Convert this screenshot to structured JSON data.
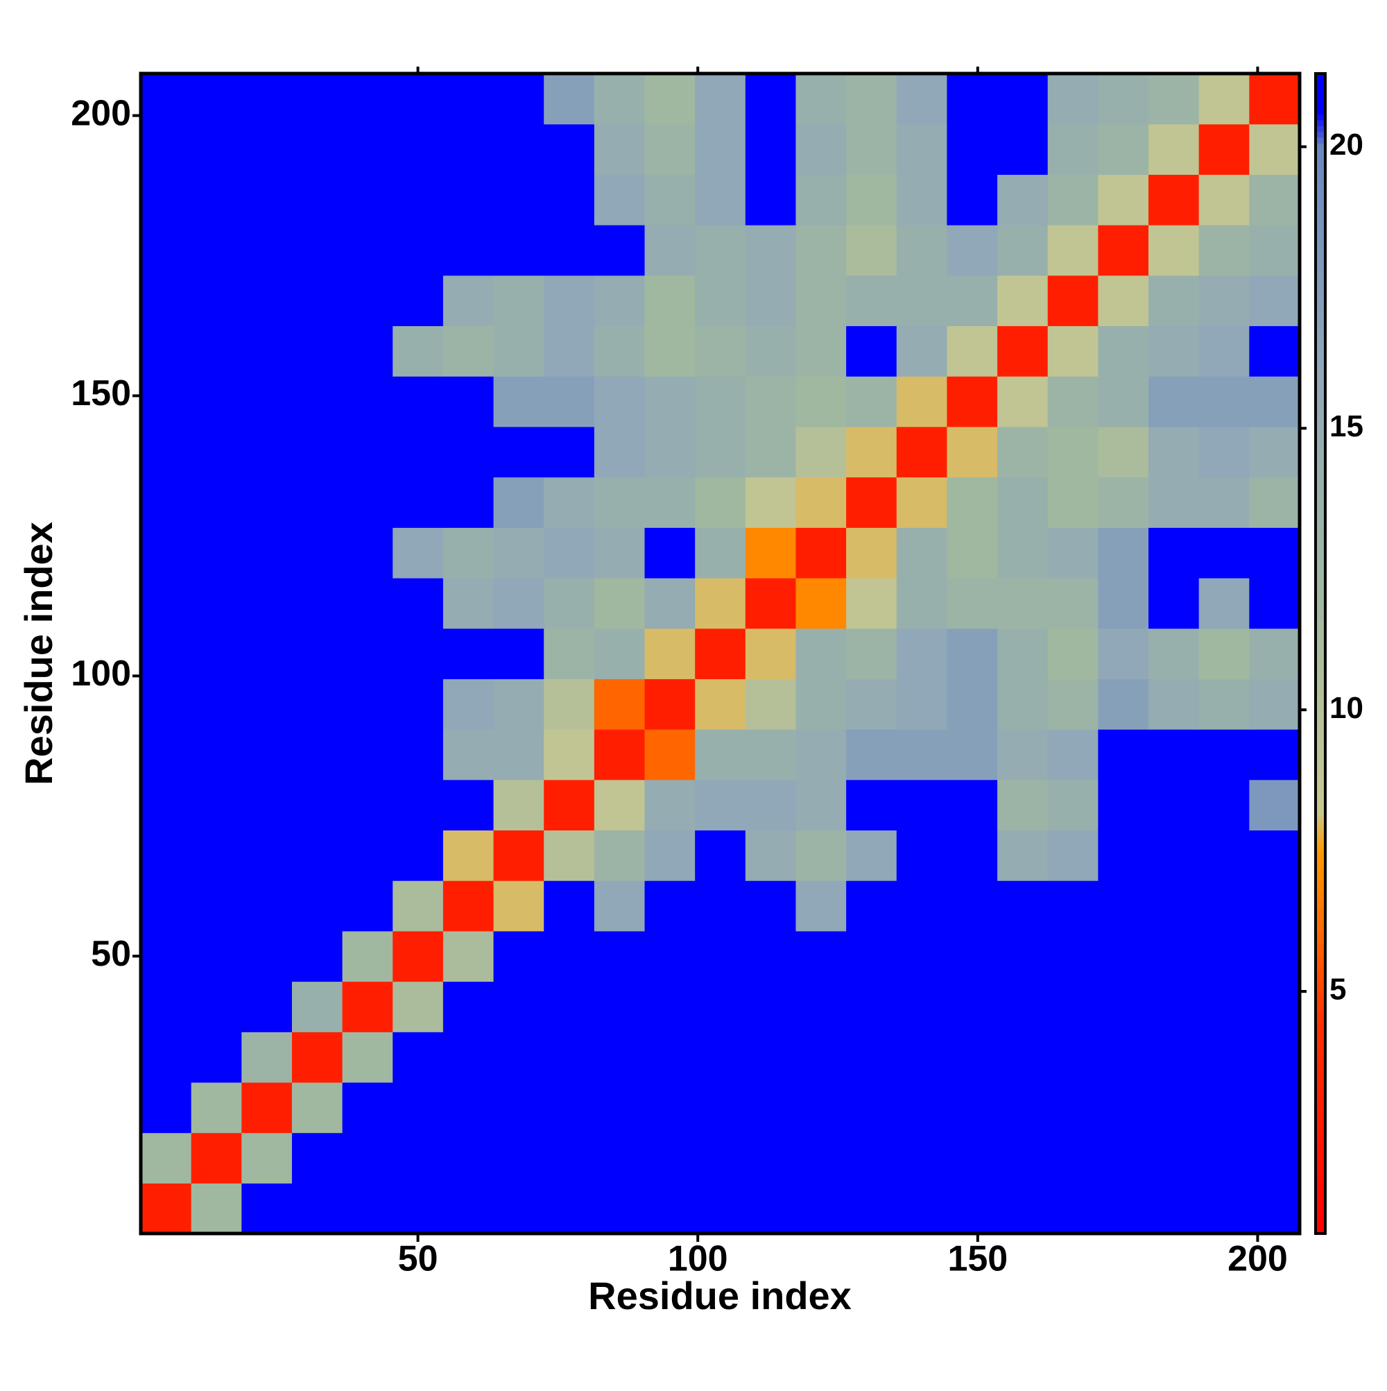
{
  "chart_data": {
    "type": "heatmap",
    "x_label": "Residue index",
    "y_label": "Residue index",
    "x": [
      5,
      14,
      23,
      32,
      41,
      50,
      59,
      68,
      77,
      86,
      95,
      104,
      113,
      122,
      131,
      140,
      149,
      158,
      167,
      176,
      185,
      194,
      203
    ],
    "y": [
      5,
      14,
      23,
      32,
      41,
      50,
      59,
      68,
      77,
      86,
      95,
      104,
      113,
      122,
      131,
      140,
      149,
      158,
      167,
      176,
      185,
      194,
      203
    ],
    "z": [
      [
        3,
        12,
        21,
        21,
        21,
        21,
        21,
        21,
        21,
        21,
        21,
        21,
        21,
        21,
        21,
        21,
        21,
        21,
        21,
        21,
        21,
        21,
        21
      ],
      [
        12,
        3,
        12,
        21,
        21,
        21,
        21,
        21,
        21,
        21,
        21,
        21,
        21,
        21,
        21,
        21,
        21,
        21,
        21,
        21,
        21,
        21,
        21
      ],
      [
        21,
        12,
        3,
        12,
        21,
        21,
        21,
        21,
        21,
        21,
        21,
        21,
        21,
        21,
        21,
        21,
        21,
        21,
        21,
        21,
        21,
        21,
        21
      ],
      [
        21,
        21,
        13,
        3,
        12,
        21,
        21,
        21,
        21,
        21,
        21,
        21,
        21,
        21,
        21,
        21,
        21,
        21,
        21,
        21,
        21,
        21,
        21
      ],
      [
        21,
        21,
        21,
        14,
        3,
        11,
        21,
        21,
        21,
        21,
        21,
        21,
        21,
        21,
        21,
        21,
        21,
        21,
        21,
        21,
        21,
        21,
        21
      ],
      [
        21,
        21,
        21,
        21,
        12,
        3,
        11,
        21,
        21,
        21,
        21,
        21,
        21,
        21,
        21,
        21,
        21,
        21,
        21,
        21,
        21,
        21,
        21
      ],
      [
        21,
        21,
        21,
        21,
        21,
        11,
        3,
        8,
        21,
        16,
        21,
        21,
        21,
        16,
        21,
        21,
        21,
        21,
        21,
        21,
        21,
        21,
        21
      ],
      [
        21,
        21,
        21,
        21,
        21,
        21,
        8,
        3,
        10,
        13,
        16,
        21,
        15,
        13,
        16,
        21,
        21,
        15,
        16,
        21,
        21,
        21,
        21
      ],
      [
        21,
        21,
        21,
        21,
        21,
        21,
        21,
        10,
        3,
        9,
        15,
        16,
        16,
        15,
        21,
        21,
        21,
        13,
        14,
        21,
        21,
        21,
        18
      ],
      [
        21,
        21,
        21,
        21,
        21,
        21,
        15,
        15,
        9,
        3,
        6,
        14,
        14,
        15,
        17,
        17,
        17,
        15,
        16,
        21,
        21,
        21,
        21
      ],
      [
        21,
        21,
        21,
        21,
        21,
        21,
        16,
        15,
        10,
        6,
        3,
        8,
        10,
        14,
        15,
        16,
        17,
        14,
        13,
        17,
        15,
        14,
        15
      ],
      [
        21,
        21,
        21,
        21,
        21,
        21,
        21,
        21,
        13,
        14,
        8,
        3,
        8,
        14,
        13,
        16,
        17,
        14,
        12,
        16,
        14,
        12,
        14
      ],
      [
        21,
        21,
        21,
        21,
        21,
        21,
        15,
        16,
        14,
        12,
        15,
        8,
        3,
        7,
        9,
        14,
        13,
        13,
        13,
        17,
        21,
        16,
        21
      ],
      [
        21,
        21,
        21,
        21,
        21,
        16,
        14,
        15,
        16,
        15,
        21,
        14,
        7,
        3,
        8,
        14,
        12,
        14,
        15,
        17,
        21,
        21,
        21
      ],
      [
        21,
        21,
        21,
        21,
        21,
        21,
        21,
        17,
        15,
        14,
        14,
        12,
        9,
        8,
        3,
        8,
        12,
        14,
        12,
        13,
        15,
        15,
        13
      ],
      [
        21,
        21,
        21,
        21,
        21,
        21,
        21,
        21,
        21,
        16,
        15,
        14,
        13,
        10,
        8,
        3,
        8,
        13,
        12,
        11,
        15,
        16,
        15
      ],
      [
        21,
        21,
        21,
        21,
        21,
        21,
        21,
        17,
        17,
        16,
        15,
        14,
        13,
        12,
        13,
        8,
        3,
        9,
        13,
        14,
        17,
        17,
        17
      ],
      [
        21,
        21,
        21,
        21,
        21,
        14,
        13,
        14,
        16,
        14,
        12,
        13,
        14,
        13,
        21,
        15,
        9,
        3,
        9,
        14,
        15,
        16,
        21
      ],
      [
        21,
        21,
        21,
        21,
        21,
        21,
        15,
        14,
        16,
        15,
        12,
        14,
        15,
        13,
        14,
        14,
        14,
        9,
        3,
        9,
        14,
        15,
        16
      ],
      [
        21,
        21,
        21,
        21,
        21,
        21,
        21,
        21,
        21,
        21,
        15,
        14,
        15,
        13,
        11,
        14,
        16,
        14,
        9,
        3,
        9,
        13,
        14
      ],
      [
        21,
        21,
        21,
        21,
        21,
        21,
        21,
        21,
        21,
        16,
        14,
        16,
        21,
        14,
        12,
        15,
        21,
        15,
        13,
        9,
        3,
        9,
        13
      ],
      [
        21,
        21,
        21,
        21,
        21,
        21,
        21,
        21,
        21,
        15,
        13,
        16,
        21,
        15,
        13,
        15,
        21,
        21,
        14,
        13,
        9,
        3,
        9
      ],
      [
        21,
        21,
        21,
        21,
        21,
        21,
        21,
        21,
        17,
        14,
        12,
        16,
        21,
        14,
        13,
        16,
        21,
        21,
        15,
        14,
        13,
        9,
        3
      ]
    ],
    "xlim": [
      0.5,
      207.5
    ],
    "ylim": [
      0.5,
      207.5
    ],
    "xticks": [
      50,
      100,
      150,
      200
    ],
    "yticks": [
      50,
      100,
      150,
      200
    ],
    "zlim": [
      0.7,
      21.3
    ],
    "zticks": [
      5,
      10,
      15,
      20
    ],
    "colorscale": [
      [
        0.7,
        "#ff0000"
      ],
      [
        4.5,
        "#ff3300"
      ],
      [
        7.5,
        "#ff9900"
      ],
      [
        8.2,
        "#c8c890"
      ],
      [
        12,
        "#a0b8a0"
      ],
      [
        16,
        "#90a8b8"
      ],
      [
        20,
        "#6a88c0"
      ],
      [
        20.6,
        "#0000ff"
      ],
      [
        21.3,
        "#0000ff"
      ]
    ]
  }
}
